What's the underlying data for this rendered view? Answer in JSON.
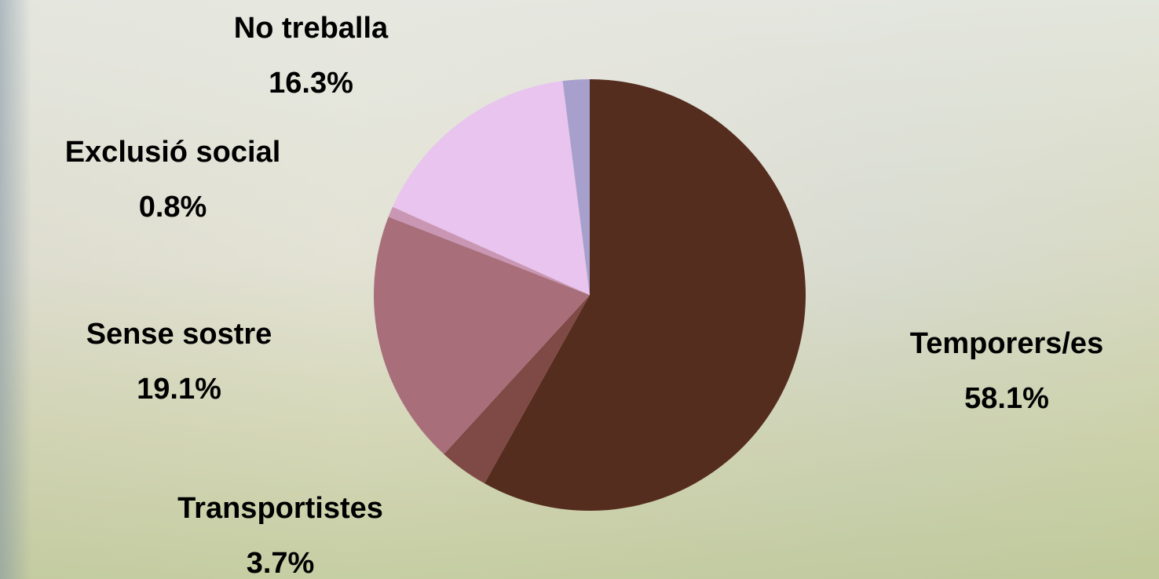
{
  "chart_data": {
    "type": "pie",
    "categories": [
      "Temporers/es",
      "Transportistes",
      "Sense sostre",
      "Exclusió social",
      "No treballa",
      null
    ],
    "values": [
      58.1,
      3.7,
      19.1,
      0.8,
      16.3,
      2.0
    ],
    "value_labels": [
      "58.1%",
      "3.7%",
      "19.1%",
      "0.8%",
      "16.3%",
      null
    ],
    "colors": [
      "#552d1e",
      "#7f4a45",
      "#a86f7b",
      "#c996b4",
      "#e8c4ee",
      "#a8a0cc"
    ]
  }
}
